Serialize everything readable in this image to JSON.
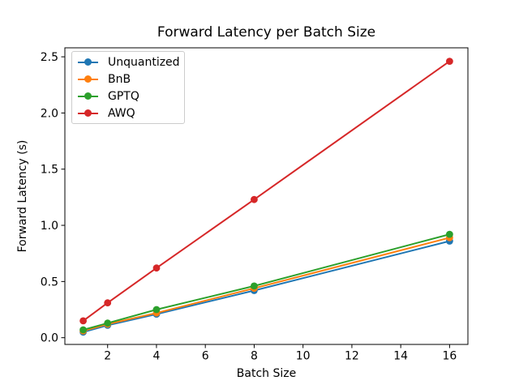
{
  "chart_data": {
    "type": "line",
    "title": "Forward Latency per Batch Size",
    "xlabel": "Batch Size",
    "ylabel": "Forward Latency (s)",
    "x": [
      1,
      2,
      4,
      8,
      16
    ],
    "series": [
      {
        "name": "Unquantized",
        "color": "#1f77b4",
        "values": [
          0.05,
          0.11,
          0.21,
          0.42,
          0.86
        ]
      },
      {
        "name": "BnB",
        "color": "#ff7f0e",
        "values": [
          0.06,
          0.12,
          0.22,
          0.44,
          0.89
        ]
      },
      {
        "name": "GPTQ",
        "color": "#2ca02c",
        "values": [
          0.07,
          0.13,
          0.25,
          0.46,
          0.92
        ]
      },
      {
        "name": "AWQ",
        "color": "#d62728",
        "values": [
          0.15,
          0.31,
          0.62,
          1.23,
          2.46
        ]
      }
    ],
    "xlim": [
      0.25,
      16.75
    ],
    "ylim": [
      -0.06,
      2.58
    ],
    "xticks": [
      2,
      4,
      6,
      8,
      10,
      12,
      14,
      16
    ],
    "yticks": [
      0.0,
      0.5,
      1.0,
      1.5,
      2.0,
      2.5
    ],
    "grid": false,
    "legend_position": "upper-left",
    "marker": "circle",
    "axis_color": "#000000",
    "background": "#ffffff"
  }
}
